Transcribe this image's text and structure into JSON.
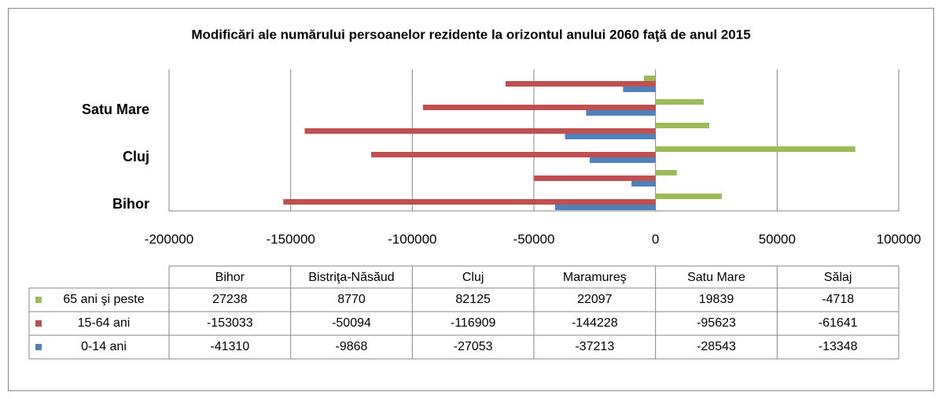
{
  "chart_data": {
    "type": "barh",
    "title": "Modificări ale numărului persoanelor rezidente la orizontul anului 2060 faţă de anul 2015",
    "categories": [
      "Bihor",
      "Bistriţa-Năsăud",
      "Cluj",
      "Maramureş",
      "Satu Mare",
      "Sălaj"
    ],
    "series": [
      {
        "name": "65 ani şi peste",
        "color": "#9bbb59",
        "values": [
          27238,
          8770,
          82125,
          22097,
          19839,
          -4718
        ]
      },
      {
        "name": "15-64 ani",
        "color": "#c0504d",
        "values": [
          -153033,
          -50094,
          -116909,
          -144228,
          -95623,
          -61641
        ]
      },
      {
        "name": "0-14 ani",
        "color": "#4f81bd",
        "values": [
          -41310,
          -9868,
          -27053,
          -37213,
          -28543,
          -13348
        ]
      }
    ],
    "xlim": [
      -200000,
      100000
    ],
    "xticks": [
      -200000,
      -150000,
      -100000,
      -50000,
      0,
      50000,
      100000
    ],
    "grid": true
  }
}
